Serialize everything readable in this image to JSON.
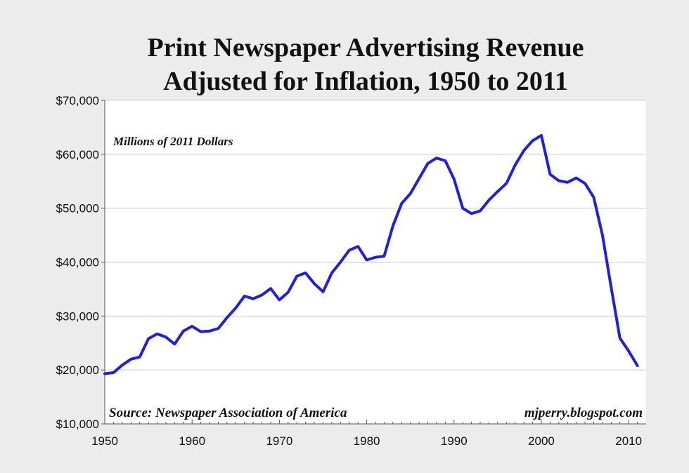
{
  "chart_data": {
    "type": "line",
    "title_lines": [
      "Print Newspaper Advertising Revenue",
      "Adjusted for Inflation, 1950 to 2011"
    ],
    "subtitle": "Millions of 2011 Dollars",
    "source": "Source: Newspaper Association of America",
    "credit": "mjperry.blogspot.com",
    "xlabel": "",
    "ylabel": "",
    "xlim": [
      1950,
      2012
    ],
    "ylim": [
      10000,
      70000
    ],
    "x_ticks": [
      1950,
      1960,
      1970,
      1980,
      1990,
      2000,
      2010
    ],
    "x_tick_labels": [
      "1950",
      "1960",
      "1970",
      "1980",
      "1990",
      "2000",
      "2010"
    ],
    "y_ticks": [
      10000,
      20000,
      30000,
      40000,
      50000,
      60000,
      70000
    ],
    "y_tick_labels": [
      "$10,000",
      "$20,000",
      "$30,000",
      "$40,000",
      "$50,000",
      "$60,000",
      "$70,000"
    ],
    "grid": true,
    "line_color": "#1f1fe0",
    "series": [
      {
        "x": [
          1950,
          1951,
          1952,
          1953,
          1954,
          1955,
          1956,
          1957,
          1958,
          1959,
          1960,
          1961,
          1962,
          1963,
          1964,
          1965,
          1966,
          1967,
          1968,
          1969,
          1970,
          1971,
          1972,
          1973,
          1974,
          1975,
          1976,
          1977,
          1978,
          1979,
          1980,
          1981,
          1982,
          1983,
          1984,
          1985,
          1986,
          1987,
          1988,
          1989,
          1990,
          1991,
          1992,
          1993,
          1994,
          1995,
          1996,
          1997,
          1998,
          1999,
          2000,
          2001,
          2002,
          2003,
          2004,
          2005,
          2006,
          2007,
          2008,
          2009,
          2010,
          2011
        ],
        "y": [
          19300,
          19500,
          20900,
          22000,
          22400,
          25800,
          26700,
          26100,
          24800,
          27200,
          28100,
          27100,
          27200,
          27700,
          29700,
          31500,
          33700,
          33200,
          33900,
          35100,
          33000,
          34400,
          37400,
          38000,
          36000,
          34500,
          38000,
          40000,
          42200,
          42900,
          40400,
          40900,
          41100,
          46700,
          50900,
          52700,
          55500,
          58300,
          59300,
          58800,
          55400,
          50000,
          49000,
          49500,
          51500,
          53100,
          54600,
          58000,
          60700,
          62500,
          63500,
          56300,
          55100,
          54800,
          55600,
          54600,
          52000,
          45000,
          35300,
          25900,
          23500,
          20800
        ]
      }
    ]
  }
}
